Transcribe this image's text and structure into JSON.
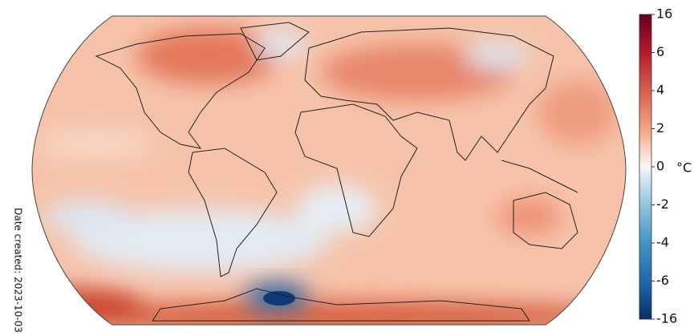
{
  "colorbar": {
    "ticks": [
      16,
      6,
      4,
      2,
      0,
      -2,
      -4,
      -6,
      -16
    ],
    "unit": "°C"
  },
  "annotation": "Date created: 2023-10-03"
}
